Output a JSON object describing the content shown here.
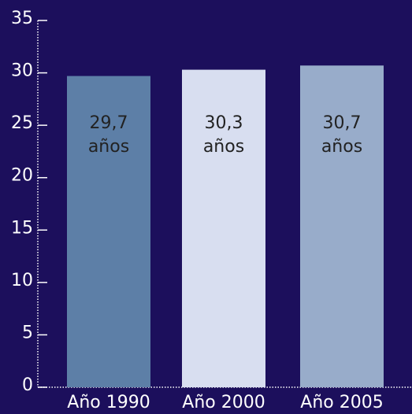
{
  "chart_data": {
    "type": "bar",
    "categories": [
      "Año 1990",
      "Año 2000",
      "Año 2005"
    ],
    "values": [
      29.7,
      30.3,
      30.7
    ],
    "value_labels": [
      "29,7 años",
      "30,3 años",
      "30,7 años"
    ],
    "colors": [
      "#5d7fa7",
      "#d8def0",
      "#98acca"
    ],
    "ylim": [
      0,
      35
    ],
    "yticks": [
      0,
      5,
      10,
      15,
      20,
      25,
      30,
      35
    ],
    "grid": false
  }
}
